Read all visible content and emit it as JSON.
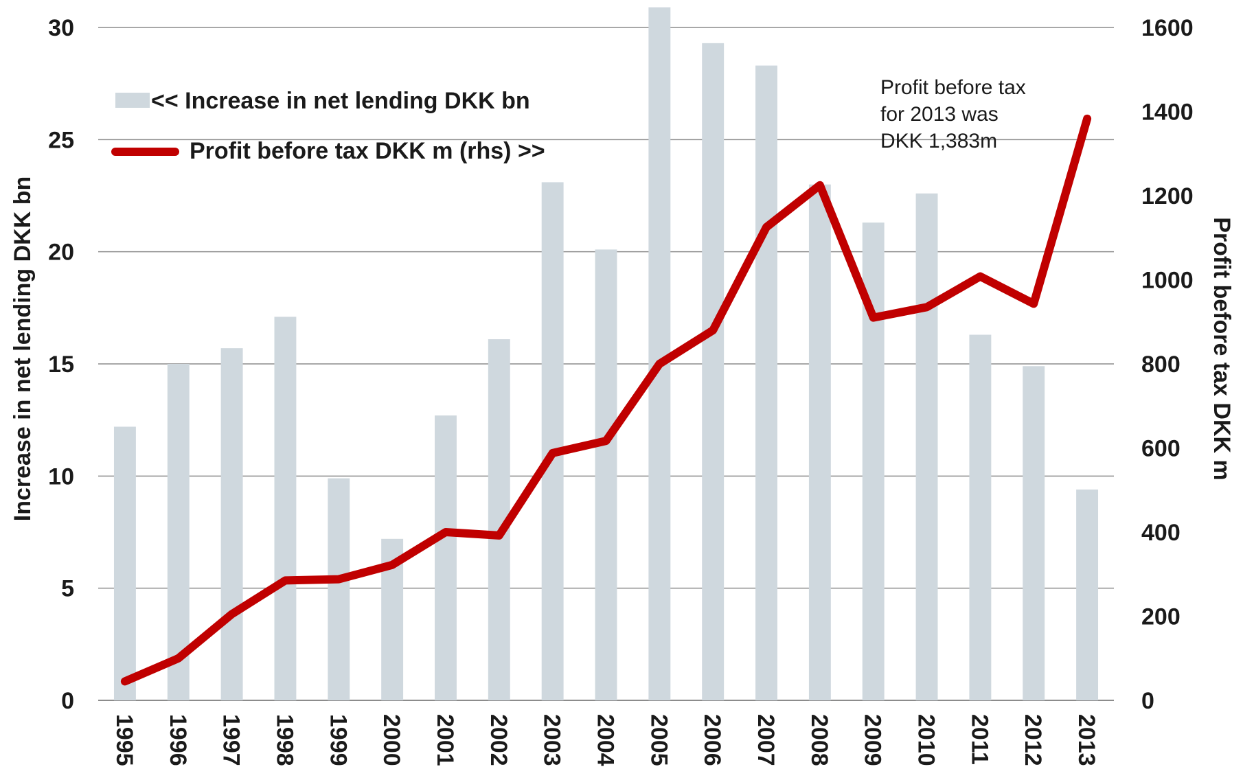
{
  "chart_data": {
    "type": "bar+line",
    "categories": [
      "1995",
      "1996",
      "1997",
      "1998",
      "1999",
      "2000",
      "2001",
      "2002",
      "2003",
      "2004",
      "2005",
      "2006",
      "2007",
      "2008",
      "2009",
      "2010",
      "2011",
      "2012",
      "2013"
    ],
    "series": [
      {
        "name": "<< Increase in net lending DKK bn",
        "type": "bar",
        "axis": "left",
        "color": "#cfd8de",
        "values": [
          12.2,
          15.0,
          15.7,
          17.1,
          9.9,
          7.2,
          12.7,
          16.1,
          23.1,
          20.1,
          30.9,
          29.3,
          28.3,
          23.0,
          21.3,
          22.6,
          16.3,
          14.9,
          9.4
        ]
      },
      {
        "name": "Profit before tax DKK m (rhs) >>",
        "type": "line",
        "axis": "right",
        "color": "#c00000",
        "values": [
          45,
          100,
          205,
          285,
          288,
          322,
          400,
          392,
          588,
          617,
          800,
          880,
          1125,
          1225,
          910,
          935,
          1008,
          943,
          1383
        ]
      }
    ],
    "y_left": {
      "label": "Increase in net lending DKK bn",
      "ylim": [
        0,
        30
      ],
      "ticks": [
        0,
        5,
        10,
        15,
        20,
        25,
        30
      ]
    },
    "y_right": {
      "label": "Profit before tax DKK m",
      "ylim": [
        0,
        1600
      ],
      "ticks": [
        0,
        200,
        400,
        600,
        800,
        1000,
        1200,
        1400,
        1600
      ]
    },
    "grid": true,
    "legend_placement": "top-left",
    "annotation": {
      "lines": [
        "Profit before tax",
        "for 2013 was",
        "DKK 1,383m"
      ]
    }
  }
}
